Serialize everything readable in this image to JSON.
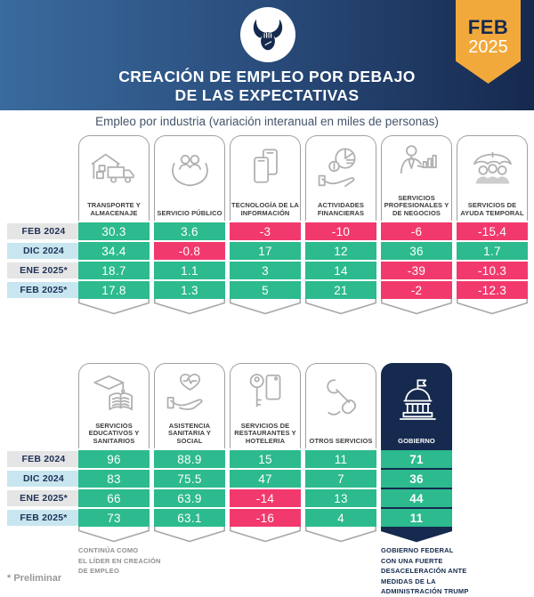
{
  "header": {
    "title_line1": "CREACIÓN DE EMPLEO POR DEBAJO",
    "title_line2": "DE LAS EXPECTATIVAS",
    "ribbon_month": "FEB",
    "ribbon_year": "2025",
    "logo_icon": "bull-logo-icon"
  },
  "subtitle": "Empleo por industria (variación interanual en miles de personas)",
  "footnote": "* Preliminar",
  "colors": {
    "positive": "#2cba8e",
    "negative": "#f2396d",
    "navy": "#152a4e",
    "ribbon_gold": "#f2a93b",
    "row_label_gray": "#e5e5e5",
    "row_label_blue": "#c8e6ef",
    "icon_gray": "#b0b0b0",
    "header_gradient_left": "#3a6b9e",
    "header_gradient_right": "#16294e"
  },
  "chart_data": {
    "type": "table",
    "title": "Empleo por industria (variación interanual en miles de personas)",
    "rows": [
      "FEB 2024",
      "DIC 2024",
      "ENE 2025*",
      "FEB 2025*"
    ],
    "value_color_rule": "negative values pink, positive values green",
    "groups": [
      {
        "columns": [
          {
            "label": "TRANSPORTE Y ALMACENAJE",
            "icon": "warehouse-truck-icon",
            "values": [
              "30.3",
              "34.4",
              "18.7",
              "17.8"
            ]
          },
          {
            "label": "SERVICIO PÚBLICO",
            "icon": "hands-people-icon",
            "values": [
              "3.6",
              "-0.8",
              "1.1",
              "1.3"
            ]
          },
          {
            "label": "TECNOLOGÍA DE LA INFORMACIÓN",
            "icon": "smartphones-icon",
            "values": [
              "-3",
              "17",
              "3",
              "5"
            ]
          },
          {
            "label": "ACTIVIDADES FINANCIERAS",
            "icon": "hand-piechart-icon",
            "values": [
              "-10",
              "12",
              "14",
              "21"
            ]
          },
          {
            "label": "SERVICIOS PROFESIONALES Y DE NEGOCIOS",
            "icon": "person-barchart-icon",
            "values": [
              "-6",
              "36",
              "-39",
              "-2"
            ]
          },
          {
            "label": "SERVICIOS DE AYUDA TEMPORAL",
            "icon": "umbrella-people-icon",
            "values": [
              "-15.4",
              "1.7",
              "-10.3",
              "-12.3"
            ]
          }
        ]
      },
      {
        "columns": [
          {
            "label": "SERVICIOS EDUCATIVOS Y SANITARIOS",
            "icon": "gradcap-book-icon",
            "values": [
              "96",
              "83",
              "66",
              "73"
            ],
            "annotation_lines": [
              "CONTINÚA COMO",
              "EL LÍDER EN CREACIÓN",
              "DE EMPLEO"
            ]
          },
          {
            "label": "ASISTENCIA SANITARIA Y SOCIAL",
            "icon": "hand-heart-icon",
            "values": [
              "88.9",
              "75.5",
              "63.9",
              "63.1"
            ]
          },
          {
            "label": "SERVICIOS DE RESTAURANTES Y HOTELERIA",
            "icon": "key-tag-icon",
            "values": [
              "15",
              "47",
              "-14",
              "-16"
            ]
          },
          {
            "label": "OTROS SERVICIOS",
            "icon": "hand-wrench-icon",
            "values": [
              "11",
              "7",
              "13",
              "4"
            ]
          },
          {
            "label": "GOBIERNO",
            "icon": "capitol-icon",
            "highlight": true,
            "values": [
              "71",
              "36",
              "44",
              "11"
            ],
            "annotation_lines": [
              "GOBIERNO FEDERAL",
              "CON UNA FUERTE",
              "DESACELERACIÓN ANTE",
              "MEDIDAS DE LA",
              "ADMINISTRACIÓN TRUMP"
            ]
          }
        ]
      }
    ]
  }
}
